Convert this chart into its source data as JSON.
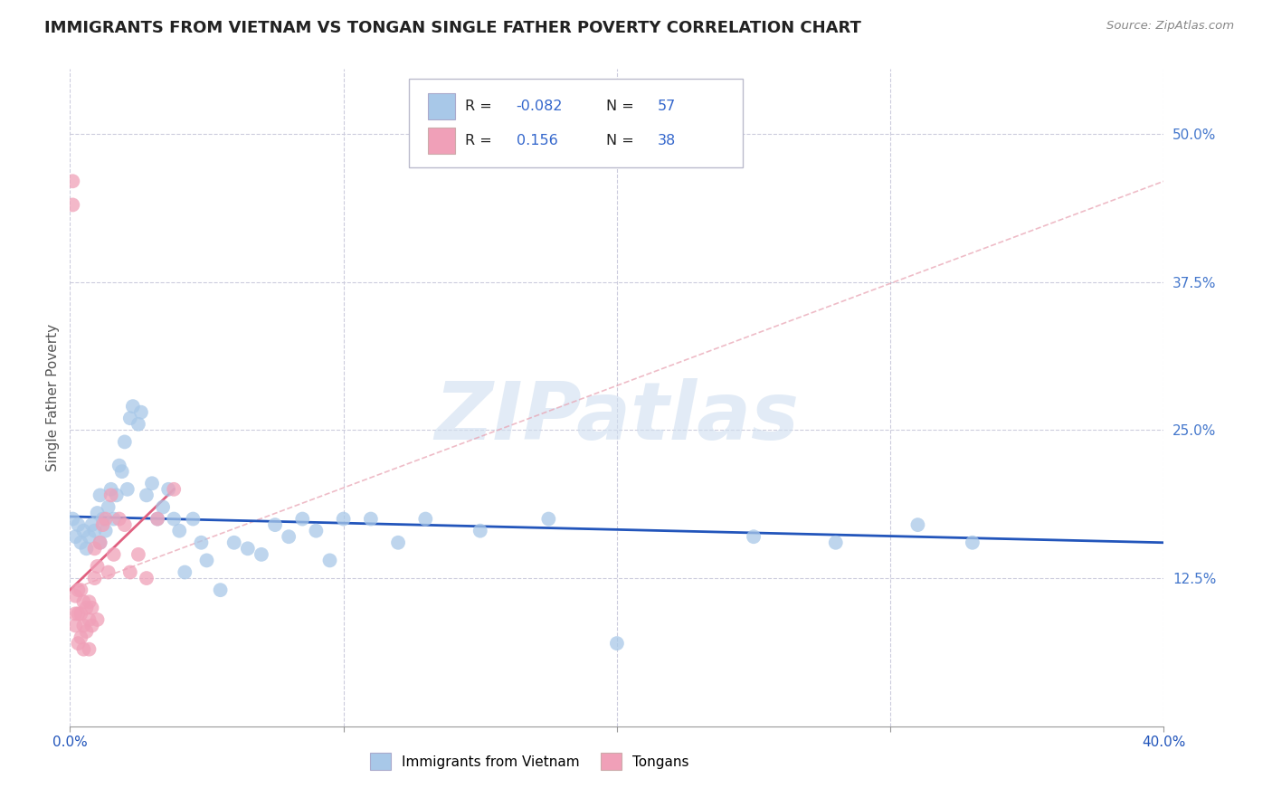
{
  "title": "IMMIGRANTS FROM VIETNAM VS TONGAN SINGLE FATHER POVERTY CORRELATION CHART",
  "source": "Source: ZipAtlas.com",
  "ylabel": "Single Father Poverty",
  "ytick_labels": [
    "12.5%",
    "25.0%",
    "37.5%",
    "50.0%"
  ],
  "ytick_values": [
    0.125,
    0.25,
    0.375,
    0.5
  ],
  "xtick_values": [
    0.0,
    0.1,
    0.2,
    0.3,
    0.4
  ],
  "xlim": [
    0.0,
    0.4
  ],
  "ylim": [
    0.0,
    0.555
  ],
  "r_vietnam": "-0.082",
  "n_vietnam": "57",
  "r_tongan": "0.156",
  "n_tongan": "38",
  "color_vietnam": "#a8c8e8",
  "color_tongan": "#f0a0b8",
  "trendline_vietnam_color": "#2255bb",
  "trendline_tongan_solid_color": "#e06080",
  "trendline_tongan_dash_color": "#e8a0b0",
  "watermark_text": "ZIPatlas",
  "watermark_color": "#d0dff0",
  "legend_box_color": "#e8e8f0",
  "vietnam_x": [
    0.001,
    0.002,
    0.003,
    0.004,
    0.005,
    0.006,
    0.007,
    0.008,
    0.009,
    0.01,
    0.011,
    0.011,
    0.012,
    0.013,
    0.014,
    0.015,
    0.016,
    0.017,
    0.018,
    0.019,
    0.02,
    0.021,
    0.022,
    0.023,
    0.025,
    0.026,
    0.028,
    0.03,
    0.032,
    0.034,
    0.036,
    0.038,
    0.04,
    0.042,
    0.045,
    0.048,
    0.05,
    0.055,
    0.06,
    0.065,
    0.07,
    0.075,
    0.08,
    0.085,
    0.09,
    0.095,
    0.1,
    0.11,
    0.12,
    0.13,
    0.15,
    0.175,
    0.2,
    0.25,
    0.28,
    0.31,
    0.33
  ],
  "vietnam_y": [
    0.175,
    0.16,
    0.17,
    0.155,
    0.165,
    0.15,
    0.16,
    0.17,
    0.165,
    0.18,
    0.155,
    0.195,
    0.175,
    0.165,
    0.185,
    0.2,
    0.175,
    0.195,
    0.22,
    0.215,
    0.24,
    0.2,
    0.26,
    0.27,
    0.255,
    0.265,
    0.195,
    0.205,
    0.175,
    0.185,
    0.2,
    0.175,
    0.165,
    0.13,
    0.175,
    0.155,
    0.14,
    0.115,
    0.155,
    0.15,
    0.145,
    0.17,
    0.16,
    0.175,
    0.165,
    0.14,
    0.175,
    0.175,
    0.155,
    0.175,
    0.165,
    0.175,
    0.07,
    0.16,
    0.155,
    0.17,
    0.155
  ],
  "tongan_x": [
    0.001,
    0.001,
    0.002,
    0.002,
    0.002,
    0.003,
    0.003,
    0.003,
    0.004,
    0.004,
    0.004,
    0.005,
    0.005,
    0.005,
    0.006,
    0.006,
    0.007,
    0.007,
    0.007,
    0.008,
    0.008,
    0.009,
    0.009,
    0.01,
    0.01,
    0.011,
    0.012,
    0.013,
    0.014,
    0.015,
    0.016,
    0.018,
    0.02,
    0.022,
    0.025,
    0.028,
    0.032,
    0.038
  ],
  "tongan_y": [
    0.46,
    0.44,
    0.085,
    0.095,
    0.11,
    0.07,
    0.095,
    0.115,
    0.075,
    0.095,
    0.115,
    0.065,
    0.085,
    0.105,
    0.08,
    0.1,
    0.065,
    0.09,
    0.105,
    0.085,
    0.1,
    0.125,
    0.15,
    0.09,
    0.135,
    0.155,
    0.17,
    0.175,
    0.13,
    0.195,
    0.145,
    0.175,
    0.17,
    0.13,
    0.145,
    0.125,
    0.175,
    0.2
  ],
  "viet_trend_x0": 0.0,
  "viet_trend_x1": 0.4,
  "viet_trend_y0": 0.177,
  "viet_trend_y1": 0.155,
  "tong_trend_solid_x0": 0.0,
  "tong_trend_solid_x1": 0.038,
  "tong_trend_solid_y0": 0.115,
  "tong_trend_solid_y1": 0.2,
  "tong_trend_dash_x0": 0.0,
  "tong_trend_dash_x1": 0.4,
  "tong_trend_dash_y0": 0.115,
  "tong_trend_dash_y1": 0.46
}
